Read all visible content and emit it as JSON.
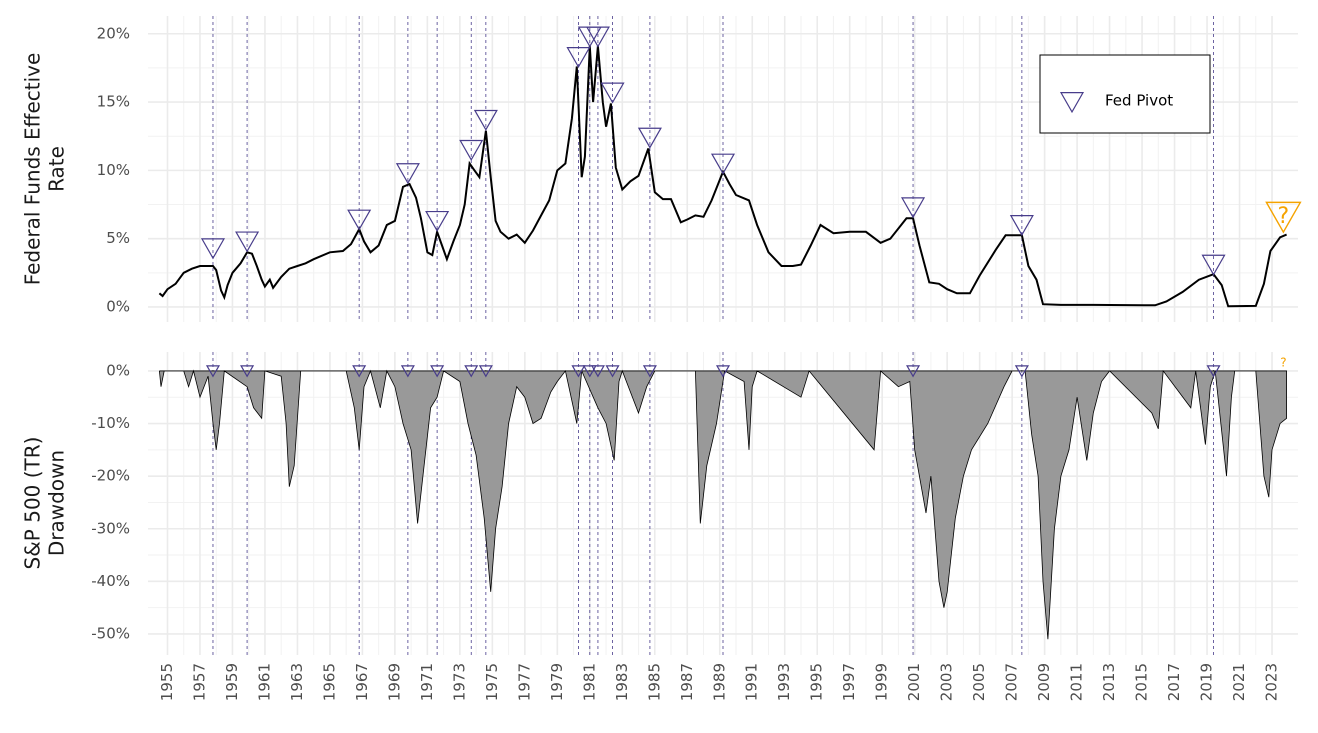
{
  "chart_data": [
    {
      "type": "line",
      "ylabel": [
        "Federal Funds Effective",
        "Rate"
      ],
      "color": "#000000",
      "xlim": [
        1953.8,
        2024.6
      ],
      "ylim": [
        -1.1,
        21.3
      ],
      "xticks": [
        1955,
        1957,
        1959,
        1961,
        1963,
        1965,
        1967,
        1969,
        1971,
        1973,
        1975,
        1977,
        1979,
        1981,
        1983,
        1985,
        1987,
        1989,
        1991,
        1993,
        1995,
        1997,
        1999,
        2001,
        2003,
        2005,
        2007,
        2009,
        2011,
        2013,
        2015,
        2017,
        2019,
        2021,
        2023
      ],
      "yticks": [
        {
          "value": 0,
          "label": "0%"
        },
        {
          "value": 5,
          "label": "5%"
        },
        {
          "value": 10,
          "label": "10%"
        },
        {
          "value": 15,
          "label": "15%"
        },
        {
          "value": 20,
          "label": "20%"
        }
      ],
      "grid": true,
      "legend": "top-right",
      "x": [
        1954.5,
        1954.7,
        1955.0,
        1955.5,
        1956.0,
        1956.5,
        1957.0,
        1957.8,
        1958.0,
        1958.3,
        1958.5,
        1958.7,
        1959.0,
        1959.5,
        1959.9,
        1960.2,
        1960.5,
        1960.8,
        1961.0,
        1961.3,
        1961.5,
        1962.0,
        1962.5,
        1963.0,
        1963.5,
        1964.0,
        1965.0,
        1965.8,
        1966.3,
        1966.8,
        1967.1,
        1967.5,
        1968.0,
        1968.5,
        1969.0,
        1969.5,
        1969.9,
        1970.3,
        1970.6,
        1971.0,
        1971.3,
        1971.6,
        1971.9,
        1972.2,
        1972.6,
        1973.0,
        1973.3,
        1973.6,
        1973.9,
        1974.2,
        1974.6,
        1974.9,
        1975.2,
        1975.5,
        1976.0,
        1976.5,
        1977.0,
        1977.5,
        1978.0,
        1978.5,
        1979.0,
        1979.5,
        1979.9,
        1980.2,
        1980.5,
        1980.7,
        1981.0,
        1981.2,
        1981.5,
        1981.8,
        1982.0,
        1982.3,
        1982.6,
        1983.0,
        1983.5,
        1984.0,
        1984.6,
        1985.0,
        1985.5,
        1986.0,
        1986.6,
        1987.0,
        1987.5,
        1988.0,
        1988.5,
        1989.2,
        1989.6,
        1990.0,
        1990.8,
        1991.3,
        1992.0,
        1992.8,
        1993.5,
        1994.0,
        1994.6,
        1995.2,
        1996.0,
        1997.0,
        1998.0,
        1998.9,
        1999.5,
        2000.5,
        2000.9,
        2001.3,
        2001.9,
        2002.5,
        2003.0,
        2003.6,
        2004.4,
        2005.0,
        2006.0,
        2006.6,
        2007.6,
        2008.0,
        2008.5,
        2008.9,
        2010.0,
        2012.0,
        2015.8,
        2016.5,
        2017.5,
        2018.5,
        2019.4,
        2019.9,
        2020.3,
        2022.0,
        2022.5,
        2022.9,
        2023.5,
        2023.9
      ],
      "values": [
        1.0,
        0.8,
        1.3,
        1.7,
        2.5,
        2.8,
        3.0,
        3.0,
        2.7,
        1.2,
        0.7,
        1.6,
        2.5,
        3.2,
        4.0,
        3.9,
        3.0,
        2.0,
        1.5,
        2.0,
        1.4,
        2.2,
        2.8,
        3.0,
        3.2,
        3.5,
        4.0,
        4.1,
        4.6,
        5.7,
        4.8,
        4.0,
        4.5,
        6.0,
        6.3,
        8.8,
        9.0,
        8.0,
        6.5,
        4.0,
        3.8,
        5.5,
        4.5,
        3.5,
        4.8,
        6.0,
        7.5,
        10.5,
        10.0,
        9.5,
        12.9,
        9.5,
        6.3,
        5.5,
        5.0,
        5.3,
        4.7,
        5.6,
        6.7,
        7.8,
        10.0,
        10.5,
        13.8,
        17.6,
        9.5,
        11.0,
        19.1,
        15.0,
        19.1,
        15.0,
        13.2,
        14.9,
        10.2,
        8.6,
        9.2,
        9.6,
        11.6,
        8.4,
        7.9,
        7.9,
        6.2,
        6.4,
        6.7,
        6.6,
        7.8,
        9.9,
        9.0,
        8.2,
        7.8,
        6.0,
        4.0,
        3.0,
        3.0,
        3.1,
        4.5,
        6.0,
        5.4,
        5.5,
        5.5,
        4.7,
        5.0,
        6.5,
        6.5,
        4.5,
        1.8,
        1.7,
        1.3,
        1.0,
        1.0,
        2.3,
        4.2,
        5.25,
        5.25,
        3.0,
        2.0,
        0.2,
        0.15,
        0.15,
        0.12,
        0.4,
        1.1,
        2.0,
        2.4,
        1.6,
        0.05,
        0.08,
        1.7,
        4.1,
        5.1,
        5.3
      ],
      "pivots": {
        "name": "Fed Pivot",
        "color": "#483D8B",
        "x": [
          1957.8,
          1959.9,
          1966.8,
          1969.8,
          1971.6,
          1973.7,
          1974.6,
          1980.3,
          1981.0,
          1981.5,
          1982.4,
          1984.7,
          1989.2,
          2000.9,
          2007.6,
          2019.4
        ],
        "values": [
          4.3,
          4.8,
          6.4,
          9.8,
          6.3,
          11.5,
          13.7,
          18.3,
          19.8,
          19.8,
          15.7,
          12.4,
          10.5,
          7.3,
          6.0,
          3.1
        ]
      },
      "annotation": {
        "text": "?",
        "x": 2023.7,
        "y": 6.6,
        "color": "#F5A300"
      }
    },
    {
      "type": "area",
      "ylabel": [
        "S&P 500 (TR)",
        "Drawdown"
      ],
      "color": "#000000",
      "fill": "#999999",
      "xlim": [
        1953.8,
        2024.6
      ],
      "ylim": [
        -54,
        3.6
      ],
      "xticks": [
        1955,
        1957,
        1959,
        1961,
        1963,
        1965,
        1967,
        1969,
        1971,
        1973,
        1975,
        1977,
        1979,
        1981,
        1983,
        1985,
        1987,
        1989,
        1991,
        1993,
        1995,
        1997,
        1999,
        2001,
        2003,
        2005,
        2007,
        2009,
        2011,
        2013,
        2015,
        2017,
        2019,
        2021,
        2023
      ],
      "yticks": [
        {
          "value": 0,
          "label": "0%"
        },
        {
          "value": -10,
          "label": "-10%"
        },
        {
          "value": -20,
          "label": "-20%"
        },
        {
          "value": -30,
          "label": "-30%"
        },
        {
          "value": -40,
          "label": "-40%"
        },
        {
          "value": -50,
          "label": "-50%"
        }
      ],
      "grid": true,
      "x": [
        1954.5,
        1954.6,
        1954.8,
        1956.0,
        1956.3,
        1956.6,
        1957.0,
        1957.5,
        1957.8,
        1958.0,
        1958.2,
        1958.5,
        1959.9,
        1960.3,
        1960.8,
        1961.0,
        1962.0,
        1962.3,
        1962.5,
        1962.8,
        1963.2,
        1966.0,
        1966.5,
        1966.8,
        1967.1,
        1967.5,
        1968.1,
        1968.5,
        1969.0,
        1969.5,
        1970.0,
        1970.4,
        1970.8,
        1971.2,
        1971.6,
        1972.0,
        1973.0,
        1973.5,
        1974.0,
        1974.5,
        1974.9,
        1975.2,
        1975.6,
        1976.0,
        1976.5,
        1977.0,
        1977.5,
        1978.0,
        1978.6,
        1979.0,
        1979.5,
        1980.2,
        1980.5,
        1981.5,
        1982.0,
        1982.5,
        1982.8,
        1983.0,
        1984.0,
        1984.5,
        1985.0,
        1987.5,
        1987.8,
        1988.2,
        1988.8,
        1989.3,
        1990.5,
        1990.8,
        1991.0,
        1991.3,
        1994.0,
        1994.5,
        1998.5,
        1998.9,
        2000.0,
        2000.7,
        2001.0,
        2001.7,
        2002.0,
        2002.5,
        2002.8,
        2003.0,
        2003.5,
        2004.0,
        2004.5,
        2005.5,
        2006.5,
        2007.0,
        2007.8,
        2008.2,
        2008.6,
        2008.9,
        2009.2,
        2009.6,
        2010.0,
        2010.5,
        2011.0,
        2011.6,
        2012.0,
        2012.5,
        2013.0,
        2015.6,
        2016.0,
        2016.3,
        2018.0,
        2018.3,
        2018.9,
        2019.2,
        2019.5,
        2020.2,
        2020.5,
        2020.7,
        2022.0,
        2022.5,
        2022.8,
        2023.0,
        2023.5,
        2023.9
      ],
      "values": [
        0,
        -3,
        0,
        0,
        -3,
        0,
        -5,
        -1,
        -10,
        -15,
        -10,
        0,
        -3,
        -7,
        -9,
        0,
        -1,
        -10,
        -22,
        -18,
        0,
        0,
        -7,
        -15,
        -3,
        0,
        -7,
        0,
        -3,
        -10,
        -15,
        -29,
        -18,
        -7,
        -5,
        0,
        -2,
        -10,
        -16,
        -28,
        -42,
        -30,
        -22,
        -10,
        -3,
        -5,
        -10,
        -9,
        -4,
        -2,
        0,
        -10,
        0,
        -7,
        -10,
        -17,
        -2,
        0,
        -8,
        -3,
        0,
        0,
        -29,
        -18,
        -10,
        0,
        -2,
        -15,
        -3,
        0,
        -5,
        0,
        -15,
        0,
        -3,
        -2,
        -15,
        -27,
        -20,
        -40,
        -45,
        -42,
        -28,
        -20,
        -15,
        -10,
        -3,
        0,
        0,
        -12,
        -20,
        -40,
        -51,
        -30,
        -20,
        -15,
        -5,
        -17,
        -8,
        -2,
        0,
        -8,
        -11,
        0,
        -7,
        0,
        -14,
        -3,
        0,
        -20,
        -5,
        0,
        0,
        -20,
        -24,
        -15,
        -10,
        -9
      ],
      "pivots": {
        "color": "#483D8B",
        "x": [
          1957.8,
          1959.9,
          1966.8,
          1969.8,
          1971.6,
          1973.7,
          1974.6,
          1980.3,
          1981.0,
          1981.5,
          1982.4,
          1984.7,
          1989.2,
          2000.9,
          2007.6,
          2019.4
        ],
        "values": [
          0,
          0,
          0,
          0,
          0,
          0,
          0,
          0,
          0,
          0,
          0,
          0,
          0,
          0,
          0,
          0
        ]
      },
      "annotation": {
        "text": "?",
        "x": 2023.7,
        "y": 1.5,
        "color": "#F5A300"
      }
    }
  ]
}
